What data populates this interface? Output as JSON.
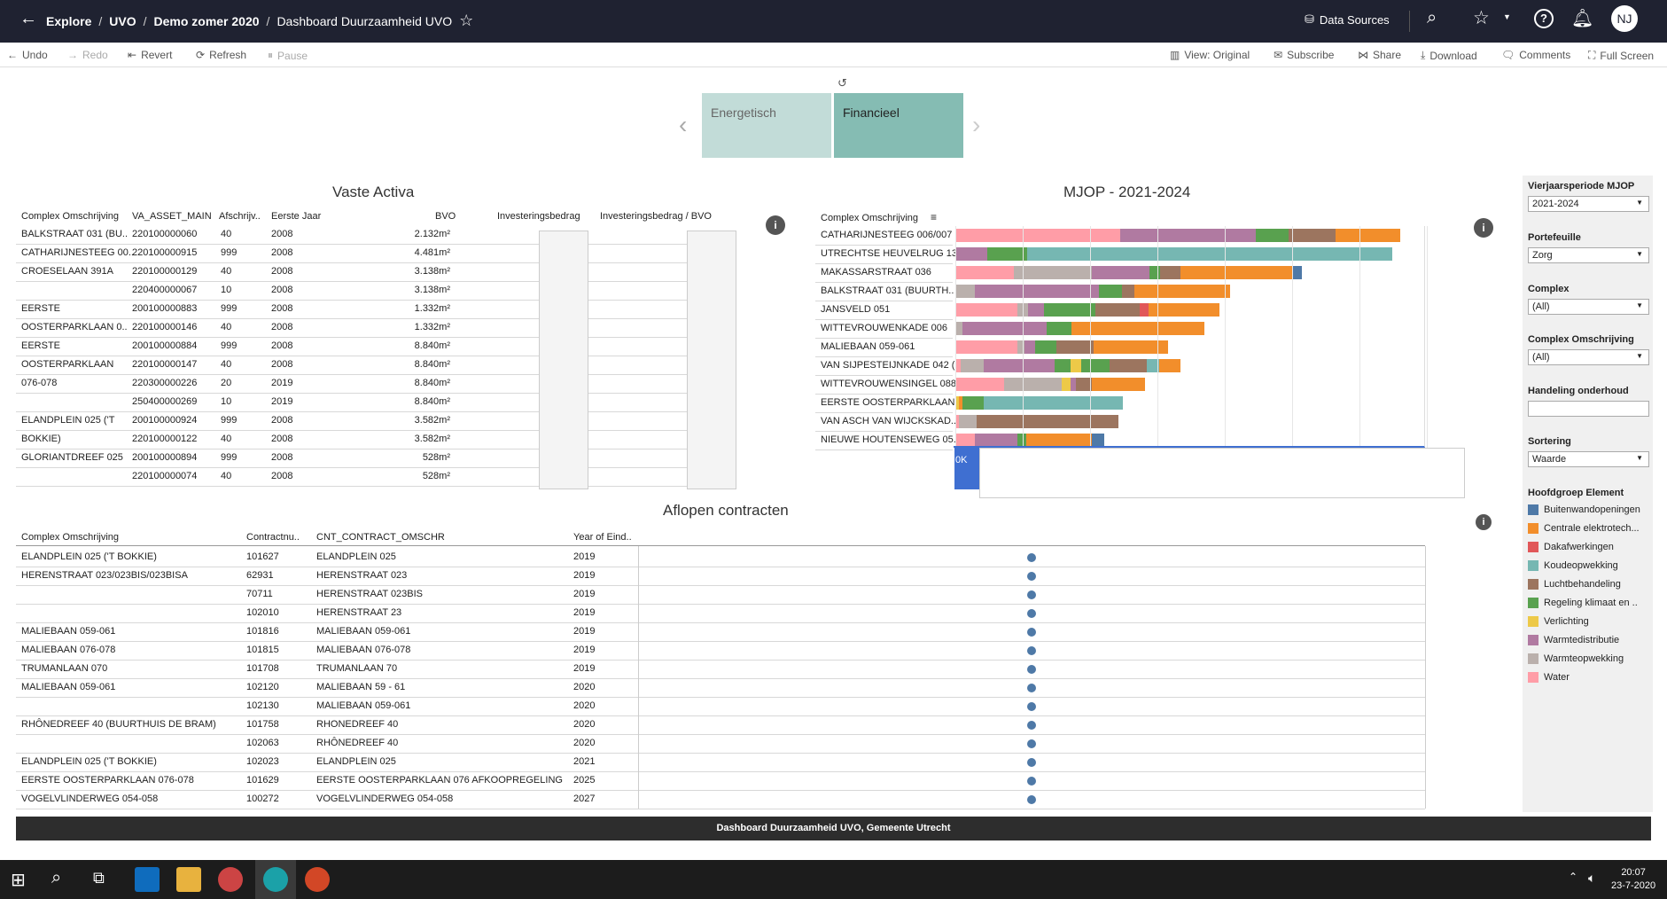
{
  "breadcrumbs": [
    "Explore",
    "UVO",
    "Demo zomer 2020",
    "Dashboard Duurzaamheid UVO"
  ],
  "topbar": {
    "data_sources": "Data Sources",
    "avatar": "NJ"
  },
  "toolbar": {
    "undo": "Undo",
    "redo": "Redo",
    "revert": "Revert",
    "refresh": "Refresh",
    "pause": "Pause",
    "view": "View: Original",
    "subscribe": "Subscribe",
    "share": "Share",
    "download": "Download",
    "comments": "Comments",
    "fullscreen": "Full Screen"
  },
  "nav": {
    "tab1": "Energetisch",
    "tab2": "Financieel"
  },
  "vaste_activa": {
    "title": "Vaste Activa",
    "headers": [
      "Complex Omschrijving",
      "VA_ASSET_MAIN",
      "Afschrijv..",
      "Eerste Jaar",
      "BVO",
      "Investeringsbedrag",
      "Investeringsbedrag / BVO"
    ],
    "rows": [
      [
        "BALKSTRAAT 031 (BU..",
        "220100000060",
        "40",
        "2008",
        "2.132m²"
      ],
      [
        "CATHARIJNESTEEG 00..",
        "220100000915",
        "999",
        "2008",
        "4.481m²"
      ],
      [
        "CROESELAAN 391A",
        "220100000129",
        "40",
        "2008",
        "3.138m²"
      ],
      [
        "",
        "220400000067",
        "10",
        "2008",
        "3.138m²"
      ],
      [
        "EERSTE",
        "200100000883",
        "999",
        "2008",
        "1.332m²"
      ],
      [
        "OOSTERPARKLAAN 0..",
        "220100000146",
        "40",
        "2008",
        "1.332m²"
      ],
      [
        "EERSTE",
        "200100000884",
        "999",
        "2008",
        "8.840m²"
      ],
      [
        "OOSTERPARKLAAN",
        "220100000147",
        "40",
        "2008",
        "8.840m²"
      ],
      [
        "076-078",
        "220300000226",
        "20",
        "2019",
        "8.840m²"
      ],
      [
        "",
        "250400000269",
        "10",
        "2019",
        "8.840m²"
      ],
      [
        "ELANDPLEIN 025 ('T",
        "200100000924",
        "999",
        "2008",
        "3.582m²"
      ],
      [
        "BOKKIE)",
        "220100000122",
        "40",
        "2008",
        "3.582m²"
      ],
      [
        "GLORIANTDREEF 025",
        "200100000894",
        "999",
        "2008",
        "528m²"
      ],
      [
        "",
        "220100000074",
        "40",
        "2008",
        "528m²"
      ]
    ]
  },
  "mjop": {
    "title": "MJOP - 2021-2024",
    "header": "Complex Omschrijving",
    "rows": [
      "CATHARIJNESTEEG 006/007",
      "UTRECHTSE HEUVELRUG 13..",
      "MAKASSARSTRAAT 036",
      "BALKSTRAAT 031 (BUURTH..",
      "JANSVELD 051",
      "WITTEVROUWENKADE 006",
      "MALIEBAAN 059-061",
      "VAN SIJPESTEIJNKADE 042 (..",
      "WITTEVROUWENSINGEL 088",
      "EERSTE OOSTERPARKLAAN ..",
      "VAN ASCH VAN WIJCKSKAD..",
      "NIEUWE HOUTENSEWEG 05.."
    ],
    "axis_label": "0K"
  },
  "contracts": {
    "title": "Aflopen contracten",
    "headers": [
      "Complex Omschrijving",
      "Contractnu..",
      "CNT_CONTRACT_OMSCHR",
      "Year of Eind.."
    ],
    "rows": [
      [
        "ELANDPLEIN 025 ('T BOKKIE)",
        "101627",
        "ELANDPLEIN 025",
        "2019"
      ],
      [
        "HERENSTRAAT 023/023BIS/023BISA",
        "62931",
        "HERENSTRAAT 023",
        "2019"
      ],
      [
        "",
        "70711",
        "HERENSTRAAT 023BIS",
        "2019"
      ],
      [
        "",
        "102010",
        "HERENSTRAAT 23",
        "2019"
      ],
      [
        "MALIEBAAN 059-061",
        "101816",
        "MALIEBAAN 059-061",
        "2019"
      ],
      [
        "MALIEBAAN 076-078",
        "101815",
        "MALIEBAAN 076-078",
        "2019"
      ],
      [
        "TRUMANLAAN 070",
        "101708",
        "TRUMANLAAN 70",
        "2019"
      ],
      [
        "MALIEBAAN 059-061",
        "102120",
        "MALIEBAAN 59 - 61",
        "2020"
      ],
      [
        "",
        "102130",
        "MALIEBAAN 059-061",
        "2020"
      ],
      [
        "RHÔNEDREEF 40 (BUURTHUIS DE BRAM)",
        "101758",
        "RHONEDREEF 40",
        "2020"
      ],
      [
        "",
        "102063",
        "RHÔNEDREEF 40",
        "2020"
      ],
      [
        "ELANDPLEIN 025 ('T BOKKIE)",
        "102023",
        "ELANDPLEIN 025",
        "2021"
      ],
      [
        "EERSTE OOSTERPARKLAAN 076-078",
        "101629",
        "EERSTE OOSTERPARKLAAN 076 AFKOOPREGELING",
        "2025"
      ],
      [
        "VOGELVLINDERWEG 054-058",
        "100272",
        "VOGELVLINDERWEG 054-058",
        "2027"
      ]
    ]
  },
  "filters": {
    "vierjaar_label": "Vierjaarsperiode MJOP",
    "vierjaar_value": "2021-2024",
    "portefeuille_label": "Portefeuille",
    "portefeuille_value": "Zorg",
    "complex_label": "Complex",
    "complex_value": "(All)",
    "complex_oms_label": "Complex Omschrijving",
    "complex_oms_value": "(All)",
    "handeling_label": "Handeling onderhoud",
    "handeling_value": "",
    "sortering_label": "Sortering",
    "sortering_value": "Waarde",
    "legend_title": "Hoofdgroep Element",
    "legend": [
      {
        "label": "Buitenwandopeningen",
        "color": "#4e79a7"
      },
      {
        "label": "Centrale elektrotech...",
        "color": "#f28e2b"
      },
      {
        "label": "Dakafwerkingen",
        "color": "#e15759"
      },
      {
        "label": "Koudeopwekking",
        "color": "#76b7b2"
      },
      {
        "label": "Luchtbehandeling",
        "color": "#9c755f"
      },
      {
        "label": "Regeling klimaat en ..",
        "color": "#59a14f"
      },
      {
        "label": "Verlichting",
        "color": "#edc948"
      },
      {
        "label": "Warmtedistributie",
        "color": "#b07aa1"
      },
      {
        "label": "Warmteopwekking",
        "color": "#bab0ac"
      },
      {
        "label": "Water",
        "color": "#ff9da7"
      }
    ]
  },
  "footer": "Dashboard Duurzaamheid UVO, Gemeente Utrecht",
  "clock": {
    "time": "20:07",
    "date": "23-7-2020"
  }
}
